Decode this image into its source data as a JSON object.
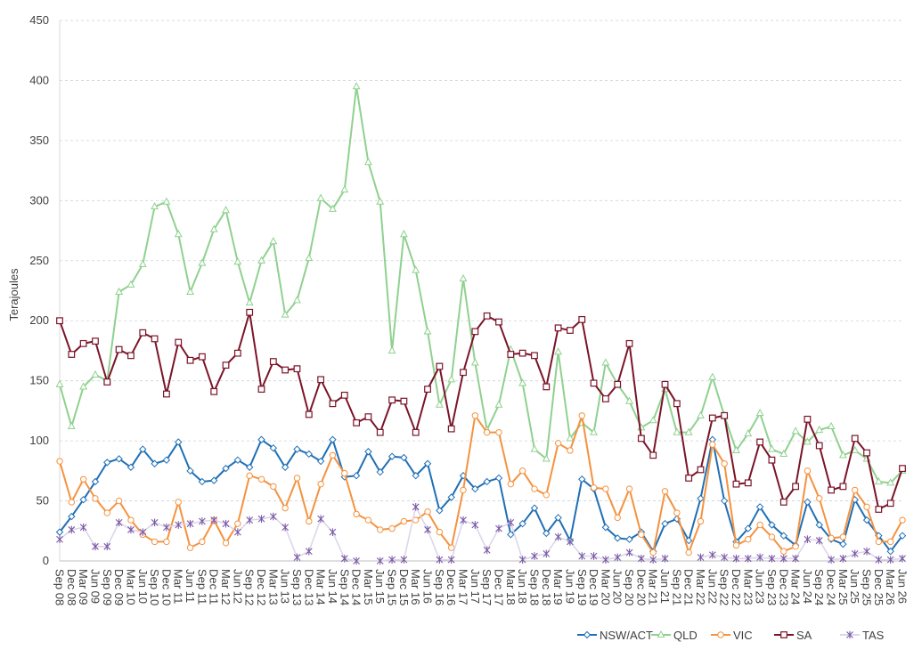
{
  "chart_data": {
    "type": "line",
    "title": "",
    "xlabel": "",
    "ylabel": "Terajoules",
    "ylim": [
      0,
      450
    ],
    "yticks": [
      0,
      50,
      100,
      150,
      200,
      250,
      300,
      350,
      400,
      450
    ],
    "grid": "horizontal dashed",
    "legend_position": "bottom-right",
    "categories": [
      "Sep 08",
      "Dec 08",
      "Mar 09",
      "Jun 09",
      "Sep 09",
      "Dec 09",
      "Mar 10",
      "Jun 10",
      "Sep 10",
      "Dec 10",
      "Mar 11",
      "Jun 11",
      "Sep 11",
      "Dec 11",
      "Mar 12",
      "Jun 12",
      "Sep 12",
      "Dec 12",
      "Mar 13",
      "Jun 13",
      "Sep 13",
      "Dec 13",
      "Mar 14",
      "Jun 14",
      "Sep 14",
      "Dec 14",
      "Mar 15",
      "Jun 15",
      "Sep 15",
      "Dec 15",
      "Mar 16",
      "Jun 16",
      "Sep 16",
      "Dec 16",
      "Mar 17",
      "Jun 17",
      "Sep 17",
      "Dec 17",
      "Mar 18",
      "Jun 18",
      "Sep 18",
      "Dec 18",
      "Mar 19",
      "Jun 19",
      "Sep 19",
      "Dec 19",
      "Mar 20",
      "Jun 20",
      "Sep 20",
      "Dec 20",
      "Mar 21",
      "Jun 21",
      "Sep 21",
      "Dec 21",
      "Mar 22",
      "Jun 22",
      "Sep 22",
      "Dec 22",
      "Mar 23",
      "Jun 23",
      "Sep 23",
      "Dec 23",
      "Mar 24",
      "Jun 24",
      "Sep 24",
      "Dec 24",
      "Mar 25",
      "Jun 25",
      "Sep 25",
      "Dec 25",
      "Mar 26",
      "Jun 26"
    ],
    "series": [
      {
        "name": "NSW/ACT",
        "color": "#1f6fb5",
        "marker": "diamond",
        "values": [
          24,
          37,
          51,
          66,
          82,
          85,
          78,
          93,
          81,
          84,
          99,
          75,
          66,
          67,
          77,
          84,
          78,
          101,
          94,
          78,
          93,
          89,
          83,
          101,
          70,
          71,
          91,
          74,
          87,
          86,
          71,
          81,
          42,
          53,
          71,
          60,
          66,
          69,
          22,
          31,
          44,
          23,
          36,
          17,
          68,
          60,
          28,
          19,
          18,
          24,
          8,
          31,
          35,
          17,
          52,
          101,
          50,
          16,
          27,
          45,
          30,
          21,
          13,
          49,
          30,
          18,
          14,
          51,
          34,
          21,
          8,
          21
        ]
      },
      {
        "name": "QLD",
        "color": "#8fd18f",
        "marker": "triangle",
        "values": [
          147,
          112,
          145,
          155,
          150,
          224,
          230,
          247,
          295,
          299,
          272,
          224,
          248,
          276,
          292,
          249,
          215,
          250,
          266,
          205,
          217,
          252,
          302,
          293,
          309,
          395,
          332,
          299,
          175,
          272,
          242,
          191,
          130,
          151,
          235,
          165,
          109,
          130,
          176,
          148,
          93,
          85,
          174,
          102,
          115,
          107,
          165,
          147,
          133,
          111,
          117,
          143,
          107,
          107,
          121,
          153,
          121,
          92,
          106,
          123,
          93,
          89,
          108,
          99,
          109,
          112,
          88,
          92,
          85,
          66,
          65,
          75
        ]
      },
      {
        "name": "VIC",
        "color": "#f5923e",
        "marker": "circle",
        "values": [
          83,
          49,
          68,
          52,
          40,
          50,
          34,
          22,
          16,
          16,
          49,
          11,
          16,
          34,
          15,
          31,
          71,
          68,
          62,
          44,
          69,
          33,
          64,
          88,
          73,
          39,
          34,
          26,
          27,
          33,
          34,
          41,
          24,
          11,
          59,
          121,
          107,
          107,
          64,
          75,
          60,
          55,
          98,
          92,
          121,
          61,
          60,
          36,
          60,
          22,
          7,
          58,
          40,
          7,
          33,
          97,
          81,
          13,
          18,
          30,
          20,
          8,
          12,
          75,
          52,
          19,
          20,
          59,
          45,
          16,
          16,
          34
        ]
      },
      {
        "name": "SA",
        "color": "#7b1428",
        "marker": "square",
        "values": [
          200,
          172,
          181,
          183,
          149,
          176,
          171,
          190,
          185,
          139,
          182,
          167,
          170,
          141,
          163,
          173,
          207,
          143,
          166,
          159,
          160,
          122,
          151,
          131,
          138,
          115,
          120,
          107,
          134,
          133,
          107,
          143,
          162,
          110,
          157,
          191,
          204,
          199,
          172,
          173,
          171,
          145,
          194,
          192,
          201,
          148,
          135,
          147,
          181,
          102,
          88,
          147,
          131,
          69,
          76,
          119,
          121,
          64,
          65,
          99,
          84,
          49,
          62,
          118,
          96,
          59,
          62,
          102,
          90,
          43,
          48,
          77
        ]
      },
      {
        "name": "TAS",
        "color": "#7a5aa6",
        "marker": "asterisk",
        "values": [
          18,
          26,
          28,
          12,
          12,
          32,
          26,
          24,
          32,
          28,
          30,
          31,
          33,
          34,
          31,
          24,
          34,
          35,
          37,
          28,
          3,
          8,
          35,
          24,
          2,
          0,
          null,
          0,
          1,
          1,
          45,
          26,
          1,
          1,
          34,
          30,
          9,
          27,
          32,
          1,
          4,
          6,
          20,
          16,
          4,
          4,
          1,
          3,
          7,
          2,
          1,
          2,
          null,
          null,
          3,
          5,
          3,
          2,
          2,
          3,
          2,
          2,
          2,
          18,
          17,
          1,
          2,
          6,
          8,
          1,
          1,
          2
        ]
      }
    ]
  }
}
